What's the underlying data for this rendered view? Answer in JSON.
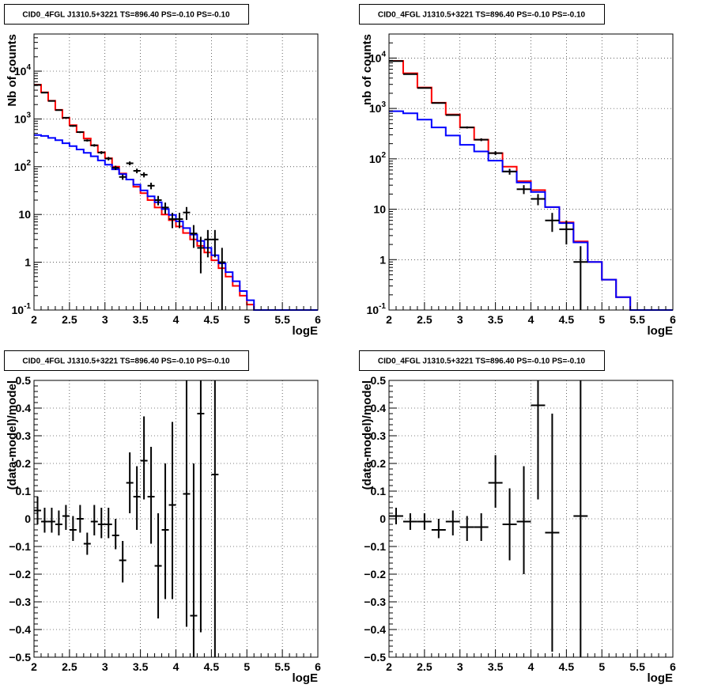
{
  "chart_data": [
    {
      "id": "p1",
      "type": "line",
      "title": "CID0_4FGL J1310.5+3221 TS=896.40 PS=-0.10 PS=-0.10",
      "xlabel": "logE",
      "ylabel": "Nb of counts",
      "xlim": [
        2,
        6
      ],
      "ylim": [
        0.1,
        60000
      ],
      "yscale": "log",
      "grid": true,
      "xticks": [
        "2",
        "2.5",
        "3",
        "3.5",
        "4",
        "4.5",
        "5",
        "5.5",
        "6"
      ],
      "yticks": [
        {
          "v": 0.1,
          "label": "10",
          "exp": "-1"
        },
        {
          "v": 1,
          "label": "1",
          "exp": ""
        },
        {
          "v": 10,
          "label": "10",
          "exp": ""
        },
        {
          "v": 100,
          "label": "10",
          "exp": "2"
        },
        {
          "v": 1000,
          "label": "10",
          "exp": "3"
        },
        {
          "v": 10000,
          "label": "10",
          "exp": "4"
        }
      ],
      "bin_edges": [
        2.0,
        2.1,
        2.2,
        2.3,
        2.4,
        2.5,
        2.6,
        2.7,
        2.8,
        2.9,
        3.0,
        3.1,
        3.2,
        3.3,
        3.4,
        3.5,
        3.6,
        3.7,
        3.8,
        3.9,
        4.0,
        4.1,
        4.2,
        4.3,
        4.4,
        4.5,
        4.6,
        4.7,
        4.8,
        4.9,
        5.0,
        5.1,
        5.2,
        5.3,
        5.4,
        5.5,
        5.6,
        5.7,
        5.8,
        5.9,
        6.0
      ],
      "series": [
        {
          "color": "#ff0000",
          "values": [
            5200,
            3600,
            2400,
            1550,
            1050,
            740,
            530,
            390,
            280,
            200,
            150,
            100,
            72,
            54,
            38,
            28,
            20,
            14,
            10,
            7.6,
            5.6,
            4.1,
            3.0,
            2.2,
            1.6,
            1.1,
            0.75,
            0.5,
            0.32,
            0.2,
            0.13,
            0.1,
            0.1,
            0.1,
            0.1,
            0.1,
            0.1,
            0.1,
            0.1,
            0.1
          ]
        },
        {
          "color": "#0000ff",
          "values": [
            460,
            440,
            400,
            360,
            310,
            270,
            230,
            195,
            165,
            135,
            110,
            88,
            70,
            54,
            42,
            32,
            24,
            18,
            13,
            9.8,
            7.2,
            5.2,
            3.8,
            2.8,
            2.0,
            1.4,
            0.95,
            0.62,
            0.4,
            0.25,
            0.16,
            0.1,
            0.1,
            0.1,
            0.1,
            0.1,
            0.1,
            0.1,
            0.1,
            0.1
          ]
        }
      ],
      "points": [
        {
          "x": 2.05,
          "y": 5150,
          "yerr": true
        },
        {
          "x": 2.15,
          "y": 3550,
          "yerr": true
        },
        {
          "x": 2.25,
          "y": 2380,
          "yerr": true
        },
        {
          "x": 2.35,
          "y": 1530,
          "yerr": true
        },
        {
          "x": 2.45,
          "y": 1060,
          "yerr": true
        },
        {
          "x": 2.55,
          "y": 715,
          "yerr": true
        },
        {
          "x": 2.65,
          "y": 530,
          "yerr": true
        },
        {
          "x": 2.75,
          "y": 355,
          "yerr": true
        },
        {
          "x": 2.85,
          "y": 280,
          "yerr": true
        },
        {
          "x": 2.95,
          "y": 198,
          "yerr": true
        },
        {
          "x": 3.05,
          "y": 148,
          "yerr": true
        },
        {
          "x": 3.15,
          "y": 95,
          "yerr": true
        },
        {
          "x": 3.25,
          "y": 61,
          "yerr": true
        },
        {
          "x": 3.35,
          "y": 118,
          "yerr": true
        },
        {
          "x": 3.45,
          "y": 82,
          "yerr": true
        },
        {
          "x": 3.55,
          "y": 68,
          "yerr": true
        },
        {
          "x": 3.65,
          "y": 40,
          "yerr": true
        },
        {
          "x": 3.75,
          "y": 20,
          "yerr": true
        },
        {
          "x": 3.85,
          "y": 14,
          "yerr": true
        },
        {
          "x": 3.95,
          "y": 8,
          "yerr": true
        },
        {
          "x": 4.05,
          "y": 8,
          "yerr": true
        },
        {
          "x": 4.15,
          "y": 11,
          "yerr": true
        },
        {
          "x": 4.25,
          "y": 4,
          "yerr": true
        },
        {
          "x": 4.35,
          "y": 2,
          "yerr": true
        },
        {
          "x": 4.45,
          "y": 3,
          "yerr": true
        },
        {
          "x": 4.55,
          "y": 3,
          "yerr": true
        },
        {
          "x": 4.65,
          "y": 1,
          "yerr": true
        }
      ]
    },
    {
      "id": "p2",
      "type": "line",
      "title": "CID0_4FGL J1310.5+3221 TS=896.40 PS=-0.10 PS=-0.10",
      "xlabel": "logE",
      "ylabel": "nb of counts",
      "xlim": [
        2,
        6
      ],
      "ylim": [
        0.1,
        30000
      ],
      "yscale": "log",
      "grid": true,
      "xticks": [
        "2",
        "2.5",
        "3",
        "3.5",
        "4",
        "4.5",
        "5",
        "5.5",
        "6"
      ],
      "yticks": [
        {
          "v": 0.1,
          "label": "10",
          "exp": "-1"
        },
        {
          "v": 1,
          "label": "1",
          "exp": ""
        },
        {
          "v": 10,
          "label": "10",
          "exp": ""
        },
        {
          "v": 100,
          "label": "10",
          "exp": "2"
        },
        {
          "v": 1000,
          "label": "10",
          "exp": "3"
        },
        {
          "v": 10000,
          "label": "10",
          "exp": "4"
        }
      ],
      "bin_edges": [
        2.0,
        2.2,
        2.4,
        2.6,
        2.8,
        3.0,
        3.2,
        3.4,
        3.6,
        3.8,
        4.0,
        4.2,
        4.4,
        4.6,
        4.8,
        5.0,
        5.2,
        5.4,
        5.6,
        5.8,
        6.0
      ],
      "series": [
        {
          "color": "#ff0000",
          "values": [
            8800,
            5000,
            2600,
            1300,
            760,
            420,
            240,
            130,
            70,
            36,
            24,
            11,
            5.5,
            2.3,
            0.9,
            0.4,
            0.18,
            0.1,
            0.1,
            0.1
          ]
        },
        {
          "color": "#0000ff",
          "values": [
            880,
            800,
            600,
            420,
            290,
            190,
            140,
            92,
            56,
            34,
            22,
            11,
            5.3,
            2.2,
            0.9,
            0.4,
            0.18,
            0.1,
            0.1,
            0.1
          ]
        }
      ],
      "points": [
        {
          "x": 2.1,
          "y": 8700,
          "yerr": true
        },
        {
          "x": 2.3,
          "y": 4800,
          "yerr": true
        },
        {
          "x": 2.5,
          "y": 2550,
          "yerr": true
        },
        {
          "x": 2.7,
          "y": 1280,
          "yerr": true
        },
        {
          "x": 2.9,
          "y": 740,
          "yerr": true
        },
        {
          "x": 3.1,
          "y": 420,
          "yerr": true
        },
        {
          "x": 3.3,
          "y": 240,
          "yerr": true
        },
        {
          "x": 3.5,
          "y": 130,
          "yerr": true
        },
        {
          "x": 3.7,
          "y": 56,
          "yerr": true
        },
        {
          "x": 3.9,
          "y": 25,
          "yerr": true
        },
        {
          "x": 4.1,
          "y": 16,
          "yerr": true
        },
        {
          "x": 4.3,
          "y": 6,
          "yerr": true
        },
        {
          "x": 4.5,
          "y": 4,
          "yerr": true
        },
        {
          "x": 4.7,
          "y": 0.9,
          "yerr": true
        }
      ]
    },
    {
      "id": "p3",
      "type": "scatter",
      "title": "CID0_4FGL J1310.5+3221 TS=896.40 PS=-0.10 PS=-0.10",
      "xlabel": "logE",
      "ylabel": "(data-model)/model",
      "xlim": [
        2,
        6
      ],
      "ylim": [
        -0.5,
        0.5
      ],
      "yscale": "linear",
      "grid": true,
      "xticks": [
        "2",
        "2.5",
        "3",
        "3.5",
        "4",
        "4.5",
        "5",
        "5.5",
        "6"
      ],
      "yticks": [
        {
          "v": -0.5,
          "label": "−0.5"
        },
        {
          "v": -0.4,
          "label": "−0.4"
        },
        {
          "v": -0.3,
          "label": "−0.3"
        },
        {
          "v": -0.2,
          "label": "−0.2"
        },
        {
          "v": -0.1,
          "label": "−0.1"
        },
        {
          "v": 0,
          "label": "0"
        },
        {
          "v": 0.1,
          "label": "0.1"
        },
        {
          "v": 0.2,
          "label": "0.2"
        },
        {
          "v": 0.3,
          "label": "0.3"
        },
        {
          "v": 0.4,
          "label": "0.4"
        },
        {
          "v": 0.5,
          "label": "0.5"
        }
      ],
      "xbin": 0.1,
      "points": [
        {
          "x": 2.05,
          "y": 0.03,
          "lo": -0.02,
          "hi": 0.08
        },
        {
          "x": 2.15,
          "y": -0.01,
          "lo": -0.05,
          "hi": 0.04
        },
        {
          "x": 2.25,
          "y": -0.01,
          "lo": -0.05,
          "hi": 0.04
        },
        {
          "x": 2.35,
          "y": -0.02,
          "lo": -0.06,
          "hi": 0.03
        },
        {
          "x": 2.45,
          "y": 0.01,
          "lo": -0.04,
          "hi": 0.05
        },
        {
          "x": 2.55,
          "y": -0.04,
          "lo": -0.08,
          "hi": 0.01
        },
        {
          "x": 2.65,
          "y": 0.0,
          "lo": -0.05,
          "hi": 0.05
        },
        {
          "x": 2.75,
          "y": -0.09,
          "lo": -0.13,
          "hi": -0.05
        },
        {
          "x": 2.85,
          "y": -0.01,
          "lo": -0.06,
          "hi": 0.05
        },
        {
          "x": 2.95,
          "y": -0.02,
          "lo": -0.07,
          "hi": 0.04
        },
        {
          "x": 3.05,
          "y": -0.02,
          "lo": -0.07,
          "hi": 0.04
        },
        {
          "x": 3.15,
          "y": -0.06,
          "lo": -0.11,
          "hi": 0.0
        },
        {
          "x": 3.25,
          "y": -0.15,
          "lo": -0.23,
          "hi": -0.08
        },
        {
          "x": 3.35,
          "y": 0.13,
          "lo": 0.02,
          "hi": 0.24
        },
        {
          "x": 3.45,
          "y": 0.08,
          "lo": -0.04,
          "hi": 0.19
        },
        {
          "x": 3.55,
          "y": 0.21,
          "lo": 0.07,
          "hi": 0.37
        },
        {
          "x": 3.65,
          "y": 0.08,
          "lo": -0.09,
          "hi": 0.26
        },
        {
          "x": 3.75,
          "y": -0.17,
          "lo": -0.36,
          "hi": 0.02
        },
        {
          "x": 3.85,
          "y": -0.04,
          "lo": -0.29,
          "hi": 0.2
        },
        {
          "x": 3.95,
          "y": 0.05,
          "lo": -0.29,
          "hi": 0.35
        },
        {
          "x": 4.15,
          "y": 0.09,
          "lo": -0.39,
          "hi": 0.5
        },
        {
          "x": 4.25,
          "y": -0.35,
          "lo": -0.5,
          "hi": 0.2
        },
        {
          "x": 4.35,
          "y": 0.38,
          "lo": -0.41,
          "hi": 0.5
        },
        {
          "x": 4.55,
          "y": 0.16,
          "lo": -0.5,
          "hi": 0.5
        }
      ]
    },
    {
      "id": "p4",
      "type": "scatter",
      "title": "CID0_4FGL J1310.5+3221 TS=896.40 PS=-0.10 PS=-0.10",
      "xlabel": "logE",
      "ylabel": "(data-model)/model",
      "xlim": [
        2,
        6
      ],
      "ylim": [
        -0.5,
        0.5
      ],
      "yscale": "linear",
      "grid": true,
      "xticks": [
        "2",
        "2.5",
        "3",
        "3.5",
        "4",
        "4.5",
        "5",
        "5.5",
        "6"
      ],
      "yticks": [
        {
          "v": -0.5,
          "label": "−0.5"
        },
        {
          "v": -0.4,
          "label": "−0.4"
        },
        {
          "v": -0.3,
          "label": "−0.3"
        },
        {
          "v": -0.2,
          "label": "−0.2"
        },
        {
          "v": -0.1,
          "label": "−0.1"
        },
        {
          "v": 0,
          "label": "0"
        },
        {
          "v": 0.1,
          "label": "0.1"
        },
        {
          "v": 0.2,
          "label": "0.2"
        },
        {
          "v": 0.3,
          "label": "0.3"
        },
        {
          "v": 0.4,
          "label": "0.4"
        },
        {
          "v": 0.5,
          "label": "0.5"
        }
      ],
      "xbin": 0.2,
      "points": [
        {
          "x": 2.1,
          "y": 0.01,
          "lo": -0.02,
          "hi": 0.04
        },
        {
          "x": 2.3,
          "y": -0.01,
          "lo": -0.04,
          "hi": 0.02
        },
        {
          "x": 2.5,
          "y": -0.01,
          "lo": -0.04,
          "hi": 0.02
        },
        {
          "x": 2.7,
          "y": -0.04,
          "lo": -0.07,
          "hi": 0.0
        },
        {
          "x": 2.9,
          "y": -0.01,
          "lo": -0.06,
          "hi": 0.03
        },
        {
          "x": 3.1,
          "y": -0.03,
          "lo": -0.08,
          "hi": 0.01
        },
        {
          "x": 3.3,
          "y": -0.03,
          "lo": -0.08,
          "hi": 0.02
        },
        {
          "x": 3.5,
          "y": 0.13,
          "lo": 0.04,
          "hi": 0.23
        },
        {
          "x": 3.7,
          "y": -0.02,
          "lo": -0.15,
          "hi": 0.11
        },
        {
          "x": 3.9,
          "y": -0.01,
          "lo": -0.2,
          "hi": 0.19
        },
        {
          "x": 4.1,
          "y": 0.41,
          "lo": 0.07,
          "hi": 0.5
        },
        {
          "x": 4.3,
          "y": -0.05,
          "lo": -0.48,
          "hi": 0.38
        },
        {
          "x": 4.7,
          "y": 0.01,
          "lo": -0.5,
          "hi": 0.5
        }
      ]
    }
  ]
}
